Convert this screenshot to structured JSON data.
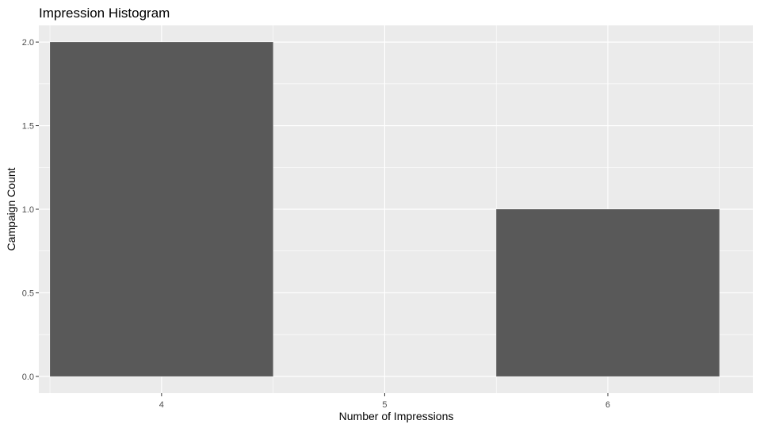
{
  "chart_data": {
    "type": "bar",
    "title": "Impression Histogram",
    "xlabel": "Number of Impressions",
    "ylabel": "Campaign Count",
    "x_ticks": [
      "4",
      "5",
      "6"
    ],
    "y_ticks": [
      "0.0",
      "0.5",
      "1.0",
      "1.5",
      "2.0"
    ],
    "bins": [
      {
        "from": 3.5,
        "to": 4.5,
        "count": 2
      },
      {
        "from": 4.5,
        "to": 5.5,
        "count": 0
      },
      {
        "from": 5.5,
        "to": 6.5,
        "count": 1
      }
    ],
    "xlim": [
      3.45,
      6.65
    ],
    "ylim": [
      -0.1,
      2.1
    ],
    "grid": true,
    "legend": "none",
    "colors": {
      "panel": "#ebebeb",
      "grid": "#ffffff",
      "bar": "#595959",
      "tick_text": "#4d4d4d",
      "tick_mark": "#333333"
    }
  }
}
